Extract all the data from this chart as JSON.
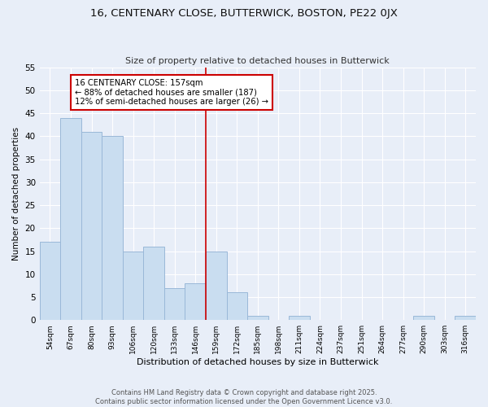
{
  "title": "16, CENTENARY CLOSE, BUTTERWICK, BOSTON, PE22 0JX",
  "subtitle": "Size of property relative to detached houses in Butterwick",
  "xlabel": "Distribution of detached houses by size in Butterwick",
  "ylabel": "Number of detached properties",
  "bar_color": "#c9ddf0",
  "bar_edge_color": "#9ab8d8",
  "categories": [
    "54sqm",
    "67sqm",
    "80sqm",
    "93sqm",
    "106sqm",
    "120sqm",
    "133sqm",
    "146sqm",
    "159sqm",
    "172sqm",
    "185sqm",
    "198sqm",
    "211sqm",
    "224sqm",
    "237sqm",
    "251sqm",
    "264sqm",
    "277sqm",
    "290sqm",
    "303sqm",
    "316sqm"
  ],
  "values": [
    17,
    44,
    41,
    40,
    15,
    16,
    7,
    8,
    15,
    6,
    1,
    0,
    1,
    0,
    0,
    0,
    0,
    0,
    1,
    0,
    1
  ],
  "vline_index": 8,
  "vline_color": "#cc0000",
  "annotation_title": "16 CENTENARY CLOSE: 157sqm",
  "annotation_line1": "← 88% of detached houses are smaller (187)",
  "annotation_line2": "12% of semi-detached houses are larger (26) →",
  "ylim": [
    0,
    55
  ],
  "yticks": [
    0,
    5,
    10,
    15,
    20,
    25,
    30,
    35,
    40,
    45,
    50,
    55
  ],
  "footer_line1": "Contains HM Land Registry data © Crown copyright and database right 2025.",
  "footer_line2": "Contains public sector information licensed under the Open Government Licence v3.0.",
  "background_color": "#e8eef8",
  "grid_color": "#ffffff",
  "annotation_box_color": "#ffffff",
  "annotation_border_color": "#cc0000"
}
